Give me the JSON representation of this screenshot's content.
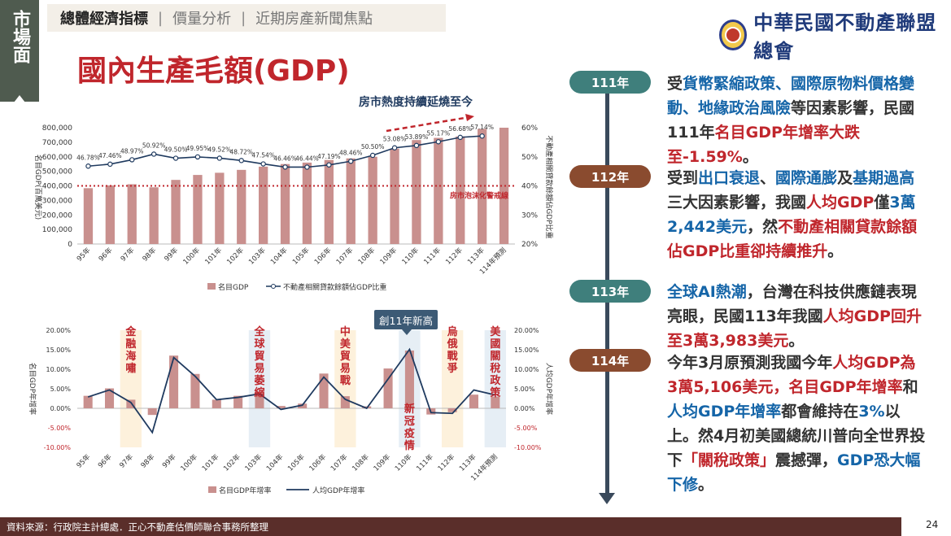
{
  "side_tag": {
    "text": "市場面"
  },
  "nav": {
    "items": [
      "總體經濟指標",
      "價量分析",
      "近期房產新聞焦點"
    ],
    "separator": "|"
  },
  "logo": {
    "text": "中華民國不動產聯盟總會"
  },
  "title": "國內生產毛額(GDP)",
  "heat_label": "房市熱度持續延燒至今",
  "colors": {
    "bar": "#c9908e",
    "line": "#1f3a5f",
    "red": "#c0262c",
    "blue": "#1565a8"
  },
  "chart_data": [
    {
      "type": "bar",
      "categories": [
        "95年",
        "96年",
        "97年",
        "98年",
        "99年",
        "100年",
        "101年",
        "102年",
        "103年",
        "104年",
        "105年",
        "106年",
        "107年",
        "108年",
        "109年",
        "110年",
        "111年",
        "112年",
        "113年",
        "114年預測"
      ],
      "series": [
        {
          "name": "名目GDP",
          "type": "bar",
          "axis": "left",
          "values": [
            384000,
            403000,
            411000,
            390000,
            441000,
            475000,
            490000,
            510000,
            532000,
            550000,
            560000,
            578000,
            589000,
            600000,
            656000,
            715000,
            730000,
            740000,
            792000,
            800000
          ]
        },
        {
          "name": "不動產相關貸款餘額佔GDP比重",
          "type": "line",
          "axis": "right",
          "values": [
            46.78,
            47.46,
            48.97,
            50.92,
            49.5,
            49.95,
            49.52,
            48.72,
            47.54,
            46.46,
            46.44,
            47.19,
            48.46,
            50.5,
            53.08,
            53.89,
            55.17,
            56.68,
            57.14,
            null
          ],
          "labels": [
            "46.78%",
            "47.46%",
            "48.97%",
            "50.92%",
            "49.50%",
            "49.95%",
            "49.52%",
            "48.72%",
            "47.54%",
            "46.46%",
            "46.44%",
            "47.19%",
            "48.46%",
            "50.50%",
            "53.08%",
            "53.89%",
            "55.17%",
            "56.68%",
            "57.14%",
            ""
          ]
        }
      ],
      "y_left": {
        "min": 0,
        "max": 800000,
        "ticks": [
          "0",
          "100,000",
          "200,000",
          "300,000",
          "400,000",
          "500,000",
          "600,000",
          "700,000",
          "800,000"
        ],
        "label": "名目GDP(百萬美元)"
      },
      "y_right": {
        "min": 20,
        "max": 60,
        "ticks": [
          "20%",
          "30%",
          "40%",
          "50%",
          "60%"
        ],
        "label": "不動產相關貸款餘額佔GDP比重"
      },
      "reference": {
        "value": 40,
        "label": "房市泡沫化警戒線"
      },
      "legend": [
        "名目GDP",
        "不動產相關貸款餘額佔GDP比重"
      ]
    },
    {
      "type": "bar",
      "categories": [
        "95年",
        "96年",
        "97年",
        "98年",
        "99年",
        "100年",
        "101年",
        "102年",
        "103年",
        "104年",
        "105年",
        "106年",
        "107年",
        "108年",
        "109年",
        "110年",
        "111年",
        "112年",
        "113年",
        "114年預測"
      ],
      "series": [
        {
          "name": "名目GDP年增率",
          "type": "bar",
          "axis": "left",
          "values": [
            3.2,
            5.1,
            2.2,
            -1.7,
            13.5,
            8.8,
            2.2,
            3.2,
            4.2,
            0.6,
            1.2,
            8.9,
            3.1,
            0.5,
            10.2,
            14.8,
            -1.59,
            -1.0,
            3.5,
            3.0
          ]
        },
        {
          "name": "人均GDP年增率",
          "type": "line",
          "axis": "right",
          "values": [
            2.9,
            4.7,
            1.5,
            -6.2,
            13.0,
            8.2,
            2.2,
            2.8,
            3.7,
            -0.3,
            0.8,
            8.0,
            2.3,
            0.0,
            7.5,
            15.1,
            -1.1,
            -1.3,
            4.7,
            3.4
          ]
        }
      ],
      "y_left": {
        "min": -10,
        "max": 20,
        "ticks": [
          "-10.00%",
          "-5.00%",
          "0.00%",
          "5.00%",
          "10.00%",
          "15.00%",
          "20.00%"
        ],
        "label": "名目GDP年增率"
      },
      "y_right": {
        "min": -10,
        "max": 20,
        "ticks": [
          "-10.00%",
          "-5.00%",
          "0.00%",
          "5.00%",
          "10.00%",
          "15.00%",
          "20.00%"
        ],
        "label": "人均GDP年增率"
      },
      "events": [
        {
          "label": "金融海嘯",
          "color": "yellow",
          "index": 2
        },
        {
          "label": "全球貿易萎縮",
          "color": "blue",
          "index": 8
        },
        {
          "label": "中美貿易戰",
          "color": "yellow",
          "index": 12
        },
        {
          "label": "新冠疫情",
          "color": "blue",
          "index": 15
        },
        {
          "label": "烏俄戰爭",
          "color": "yellow",
          "index": 17
        },
        {
          "label": "美國關稅政策",
          "color": "blue",
          "index": 19
        }
      ],
      "balloon": "創11年新高",
      "legend": [
        "名目GDP年增率",
        "人均GDP年增率"
      ]
    }
  ],
  "timeline": [
    {
      "year": "111年",
      "style": "teal",
      "segments": [
        {
          "t": "受",
          "c": ""
        },
        {
          "t": "貨幣緊縮政策、國際原物料價格變動、地緣政治風險",
          "c": "b"
        },
        {
          "t": "等因素影響，民國111年",
          "c": ""
        },
        {
          "t": "名目GDP年增率大跌至-1.59%",
          "c": "r"
        },
        {
          "t": "。",
          "c": ""
        }
      ]
    },
    {
      "year": "112年",
      "style": "brown",
      "segments": [
        {
          "t": "受到",
          "c": ""
        },
        {
          "t": "出口衰退",
          "c": "b"
        },
        {
          "t": "、",
          "c": ""
        },
        {
          "t": "國際通膨",
          "c": "b"
        },
        {
          "t": "及",
          "c": ""
        },
        {
          "t": "基期過高",
          "c": "b"
        },
        {
          "t": "三大因素影響，我國",
          "c": ""
        },
        {
          "t": "人均GDP",
          "c": "r"
        },
        {
          "t": "僅",
          "c": ""
        },
        {
          "t": "3萬2,442美元",
          "c": "b"
        },
        {
          "t": "，然",
          "c": ""
        },
        {
          "t": "不動產相關貸款餘額佔GDP比重卻持續推升",
          "c": "r"
        },
        {
          "t": "。",
          "c": ""
        }
      ]
    },
    {
      "year": "113年",
      "style": "teal",
      "segments": [
        {
          "t": "全球AI熱潮",
          "c": "b"
        },
        {
          "t": "，台灣在科技供應鏈表現亮眼，民國113年我國",
          "c": ""
        },
        {
          "t": "人均GDP回升至3萬3,983美元",
          "c": "r"
        },
        {
          "t": "。",
          "c": ""
        }
      ]
    },
    {
      "year": "114年",
      "style": "brown",
      "segments": [
        {
          "t": "今年3月原預測我國今年",
          "c": ""
        },
        {
          "t": "人均GDP為3萬5,106美元，名目GDP年增率",
          "c": "r"
        },
        {
          "t": "和",
          "c": ""
        },
        {
          "t": "人均GDP年增率",
          "c": "b"
        },
        {
          "t": "都會維持在",
          "c": ""
        },
        {
          "t": "3%",
          "c": "b"
        },
        {
          "t": "以上。然4月初美國總統川普向全世界投下",
          "c": ""
        },
        {
          "t": "「關稅政策」",
          "c": "r"
        },
        {
          "t": "震撼彈，",
          "c": ""
        },
        {
          "t": "GDP恐大幅下修",
          "c": "b"
        },
        {
          "t": "。",
          "c": ""
        }
      ]
    }
  ],
  "footer": "資料來源：行政院主計總處．正心不動產估價師聯合事務所整理",
  "page_number": "24"
}
